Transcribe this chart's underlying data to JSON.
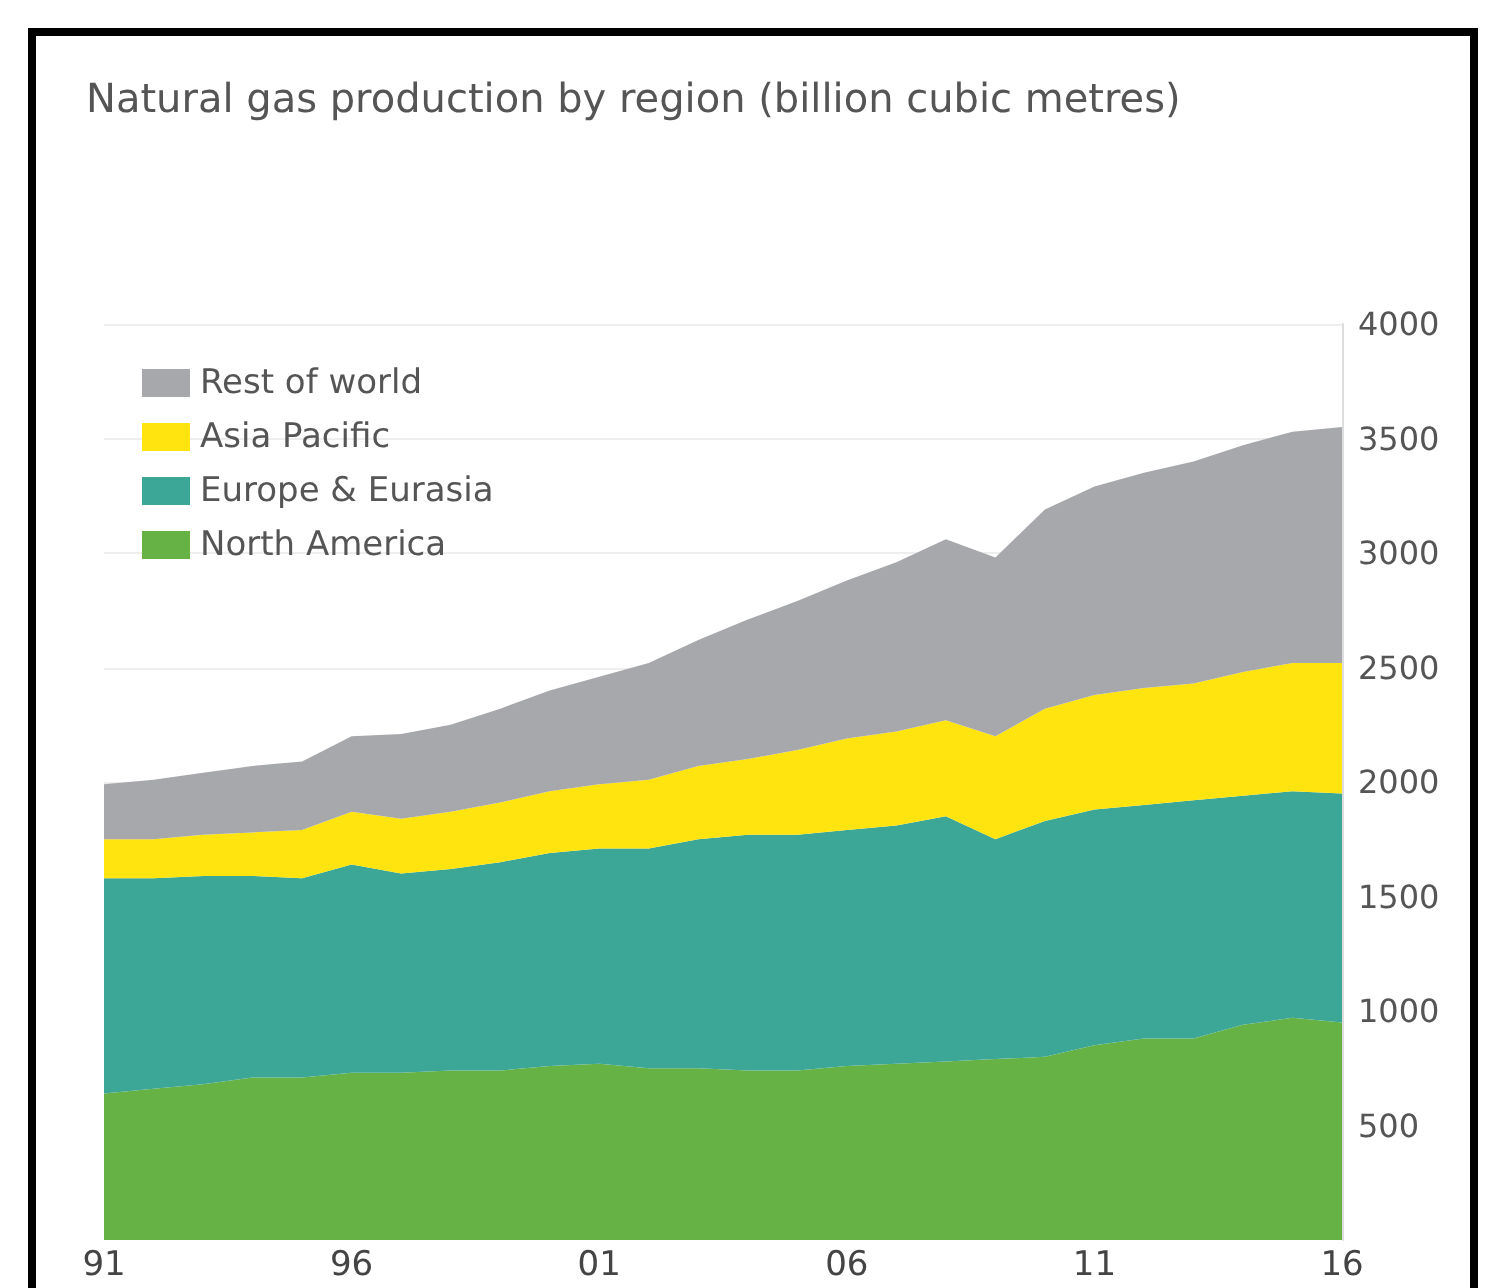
{
  "chart_data": {
    "type": "area",
    "stacked": true,
    "title": "Natural gas production by region (billion cubic metres)",
    "x": [
      1991,
      1992,
      1993,
      1994,
      1995,
      1996,
      1997,
      1998,
      1999,
      2000,
      2001,
      2002,
      2003,
      2004,
      2005,
      2006,
      2007,
      2008,
      2009,
      2010,
      2011,
      2012,
      2013,
      2014,
      2015,
      2016
    ],
    "xlim": [
      1991,
      2016
    ],
    "xticks": [
      {
        "value": 1991,
        "label": "91"
      },
      {
        "value": 1996,
        "label": "96"
      },
      {
        "value": 2001,
        "label": "01"
      },
      {
        "value": 2006,
        "label": "06"
      },
      {
        "value": 2011,
        "label": "11"
      },
      {
        "value": 2016,
        "label": "16"
      }
    ],
    "ylim": [
      0,
      4000
    ],
    "yticks": [
      500,
      1000,
      1500,
      2000,
      2500,
      3000,
      3500,
      4000
    ],
    "grid": "y",
    "legend": "top left",
    "series": [
      {
        "name": "North America",
        "color": "#66b245",
        "values": [
          640,
          660,
          680,
          710,
          710,
          730,
          730,
          740,
          740,
          760,
          770,
          750,
          750,
          740,
          740,
          760,
          770,
          780,
          790,
          800,
          850,
          880,
          880,
          940,
          970,
          950
        ]
      },
      {
        "name": "Europe & Eurasia",
        "color": "#3da797",
        "values": [
          940,
          920,
          910,
          880,
          870,
          910,
          870,
          880,
          910,
          930,
          940,
          960,
          1000,
          1030,
          1030,
          1030,
          1040,
          1070,
          960,
          1030,
          1030,
          1020,
          1040,
          1000,
          990,
          1000
        ]
      },
      {
        "name": "Asia Pacific",
        "color": "#ffe40f",
        "values": [
          170,
          170,
          180,
          190,
          210,
          230,
          240,
          250,
          260,
          270,
          280,
          300,
          320,
          330,
          370,
          400,
          410,
          420,
          450,
          490,
          500,
          510,
          510,
          540,
          560,
          570
        ]
      },
      {
        "name": "Rest of world",
        "color": "#a7a8ab",
        "values": [
          240,
          260,
          270,
          290,
          300,
          330,
          370,
          380,
          410,
          440,
          470,
          510,
          550,
          610,
          650,
          690,
          740,
          790,
          780,
          870,
          910,
          940,
          970,
          990,
          1010,
          1030
        ]
      }
    ]
  }
}
